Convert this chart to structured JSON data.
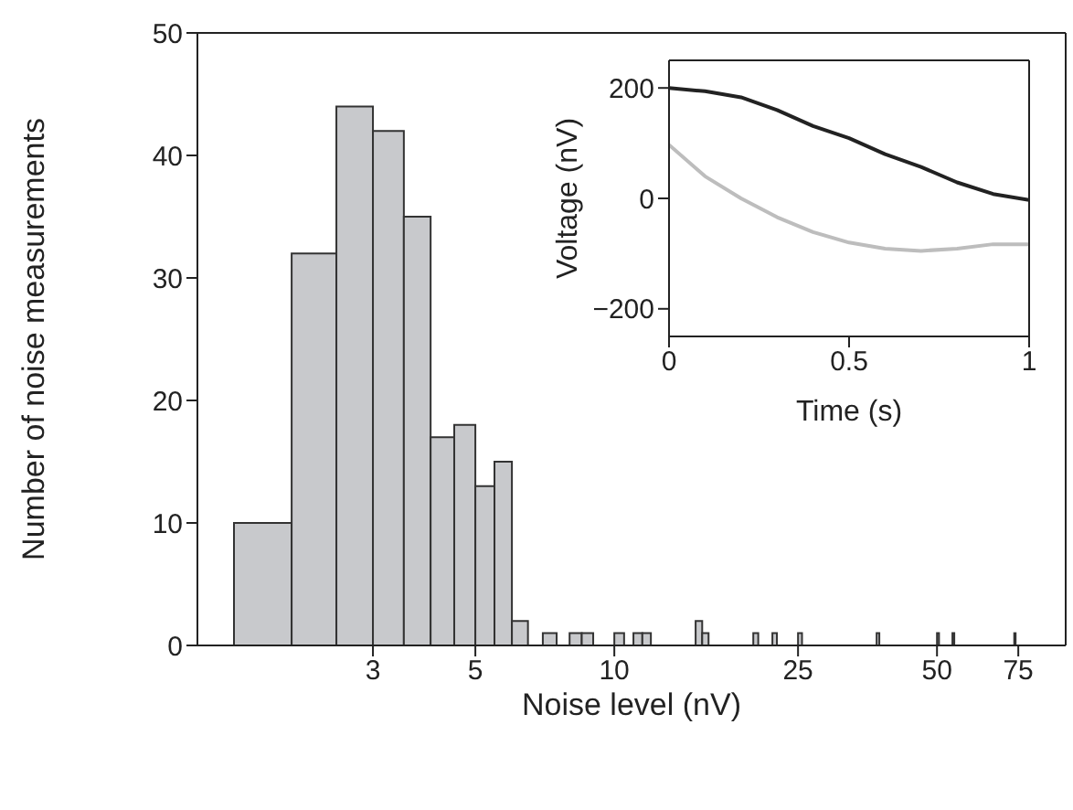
{
  "chart_data": [
    {
      "type": "histogram",
      "xlabel": "Noise level (nV)",
      "ylabel": "Number of noise measurements",
      "color": "#c8c9cc",
      "log": "x",
      "bins": [
        1.5,
        2,
        2.5,
        3,
        3.5,
        4,
        4.5,
        5,
        5.5,
        6,
        6.5,
        7,
        7.5,
        8,
        8.5,
        9,
        10,
        10.5,
        11,
        11.5,
        12,
        15,
        15.5,
        16,
        20,
        20.5,
        22,
        22.5,
        25,
        25.5,
        37,
        37.5,
        50,
        50.5,
        54,
        54.5,
        73.5,
        74
      ],
      "values": [
        10,
        32,
        44,
        42,
        35,
        17,
        18,
        13,
        15,
        2,
        0,
        1,
        0,
        1,
        1,
        0,
        1,
        0,
        1,
        1,
        0,
        2,
        1,
        0,
        1,
        0,
        1,
        0,
        1,
        0,
        1,
        0,
        1,
        0,
        1,
        0,
        1
      ],
      "xlim": [
        1.25,
        95
      ],
      "xticks": [
        3,
        5,
        10,
        25,
        50,
        75
      ],
      "ylim": [
        0,
        50
      ],
      "yticks": [
        0,
        10,
        20,
        30,
        40,
        50
      ]
    },
    {
      "type": "line",
      "xlabel": "Time (s)",
      "ylabel": "Voltage (nV)",
      "x": [
        0,
        0.1,
        0.2,
        0.3,
        0.4,
        0.5,
        0.6,
        0.7,
        0.8,
        0.9,
        1
      ],
      "series": [
        {
          "color": "#222222",
          "values": [
            200,
            194,
            183,
            160,
            131,
            109,
            80,
            57,
            29,
            8,
            -3
          ]
        },
        {
          "color": "#bdbdbd",
          "values": [
            97,
            40,
            0,
            -34,
            -61,
            -80,
            -91,
            -95,
            -91,
            -83,
            -83
          ]
        }
      ],
      "xlim": [
        0,
        1
      ],
      "xticks": [
        0,
        0.5,
        1
      ],
      "ylim": [
        -250,
        250
      ],
      "yticks": [
        {
          "value": -200,
          "label": "−200"
        },
        0,
        200
      ]
    }
  ]
}
